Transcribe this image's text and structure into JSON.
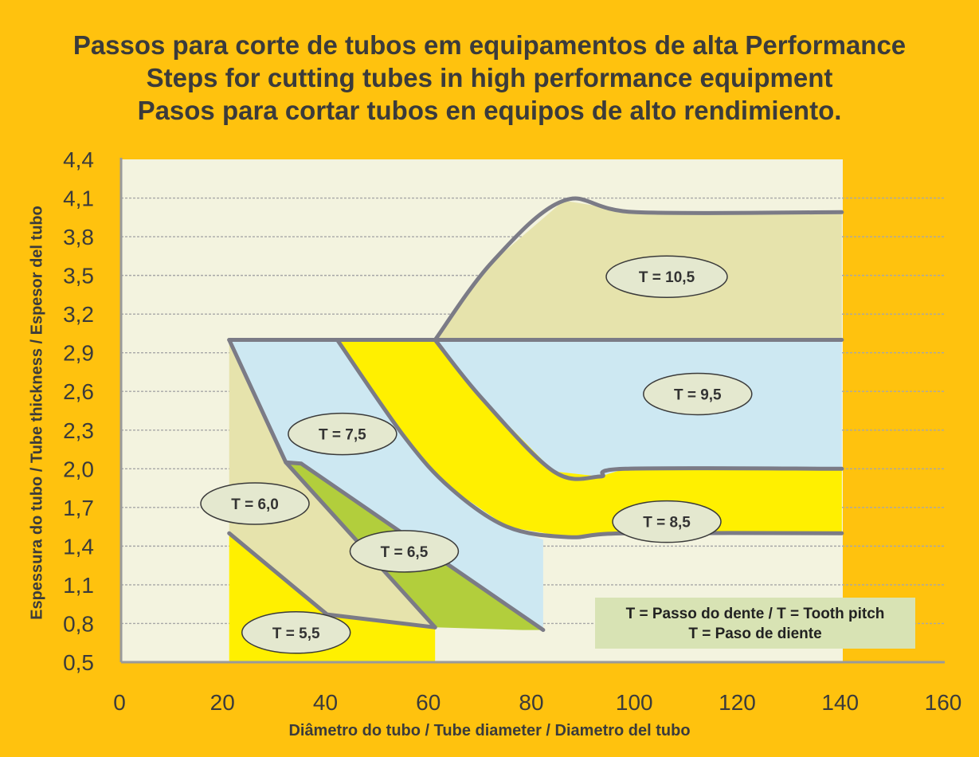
{
  "titles": [
    "Passos para corte de tubos em equipamentos de alta Performance",
    "Steps for cutting tubes in high performance equipment",
    "Pasos para cortar tubos en equipos de alto rendimiento."
  ],
  "colors": {
    "background": "#FFC20E",
    "plot_bg": "#F3F3DF",
    "line": "#7B7B86",
    "region_tan": "#E6E3AC",
    "region_blue": "#CDE8F2",
    "region_yellow": "#FFF000",
    "region_green": "#B2CE3C",
    "label_bg": "#E4E8CF"
  },
  "chart_data": {
    "type": "area",
    "xlabel": "Diâmetro do tubo / Tube diameter / Diametro del tubo",
    "ylabel": "Espessura do tubo / Tube thickness / Espesor del tubo",
    "xlim": [
      0,
      160
    ],
    "ylim": [
      0.5,
      4.4
    ],
    "x_ticks": [
      "0",
      "20",
      "40",
      "60",
      "80",
      "100",
      "120",
      "140",
      "160"
    ],
    "y_ticks": [
      "4,4",
      "4,1",
      "3,8",
      "3,5",
      "3,2",
      "2,9",
      "2,6",
      "2,3",
      "2,0",
      "1,7",
      "1,4",
      "1,1",
      "0,8",
      "0,5"
    ],
    "grid": true,
    "series": [
      {
        "name": "T = 10,5",
        "label_at": [
          106,
          3.49
        ],
        "region": [
          [
            61,
            3.0
          ],
          [
            72,
            3.6
          ],
          [
            86,
            4.08
          ],
          [
            100,
            3.99
          ],
          [
            140,
            3.99
          ],
          [
            140,
            3.0
          ]
        ]
      },
      {
        "name": "T = 9,5",
        "label_at": [
          112,
          2.58
        ],
        "region": [
          [
            61,
            3.0
          ],
          [
            140,
            3.0
          ],
          [
            140,
            2.0
          ],
          [
            98,
            2.0
          ],
          [
            93,
            1.94
          ],
          [
            84,
            1.98
          ],
          [
            70,
            2.55
          ]
        ]
      },
      {
        "name": "T = 8,5",
        "label_at": [
          106,
          1.59
        ],
        "region": [
          [
            42,
            3.0
          ],
          [
            61,
            3.0
          ],
          [
            70,
            2.55
          ],
          [
            84,
            1.98
          ],
          [
            93,
            1.94
          ],
          [
            98,
            2.0
          ],
          [
            140,
            2.0
          ],
          [
            140,
            1.5
          ],
          [
            98,
            1.5
          ],
          [
            87,
            1.47
          ],
          [
            75,
            1.55
          ],
          [
            64,
            1.85
          ],
          [
            55,
            2.25
          ]
        ]
      },
      {
        "name": "T = 7,5",
        "label_at": [
          43,
          2.27
        ],
        "region": [
          [
            21,
            3.0
          ],
          [
            42,
            3.0
          ],
          [
            55,
            2.25
          ],
          [
            64,
            1.85
          ],
          [
            75,
            1.55
          ],
          [
            82,
            1.45
          ],
          [
            82,
            0.75
          ],
          [
            35,
            2.04
          ],
          [
            32,
            2.05
          ]
        ]
      },
      {
        "name": "T = 6,5",
        "label_at": [
          55,
          1.36
        ],
        "region": [
          [
            32,
            2.05
          ],
          [
            35,
            2.04
          ],
          [
            82,
            0.75
          ],
          [
            78,
            0.75
          ],
          [
            61,
            0.77
          ]
        ]
      },
      {
        "name": "T = 6,0",
        "label_at": [
          26,
          1.73
        ],
        "region": [
          [
            21,
            3.0
          ],
          [
            32,
            2.05
          ],
          [
            61,
            0.77
          ],
          [
            40,
            0.87
          ],
          [
            21,
            1.5
          ]
        ]
      },
      {
        "name": "T = 5,5",
        "label_at": [
          34,
          0.73
        ],
        "region": [
          [
            21,
            1.5
          ],
          [
            40,
            0.87
          ],
          [
            61,
            0.77
          ],
          [
            61,
            0.5
          ],
          [
            21,
            0.5
          ]
        ]
      }
    ],
    "boundaries": [
      [
        [
          61,
          3.0
        ],
        [
          72,
          3.6
        ],
        [
          86,
          4.08
        ],
        [
          100,
          3.99
        ],
        [
          140,
          3.99
        ]
      ],
      [
        [
          21,
          3.0
        ],
        [
          140,
          3.0
        ]
      ],
      [
        [
          61,
          3.0
        ],
        [
          70,
          2.55
        ],
        [
          84,
          1.98
        ],
        [
          93,
          1.94
        ],
        [
          98,
          2.0
        ],
        [
          140,
          2.0
        ]
      ],
      [
        [
          42,
          3.0
        ],
        [
          55,
          2.25
        ],
        [
          64,
          1.85
        ],
        [
          75,
          1.55
        ],
        [
          87,
          1.47
        ],
        [
          98,
          1.5
        ],
        [
          140,
          1.5
        ]
      ],
      [
        [
          21,
          3.0
        ],
        [
          32,
          2.05
        ],
        [
          61,
          0.77
        ]
      ],
      [
        [
          32,
          2.05
        ],
        [
          35,
          2.04
        ],
        [
          82,
          0.75
        ]
      ],
      [
        [
          21,
          1.5
        ],
        [
          40,
          0.87
        ],
        [
          61,
          0.77
        ]
      ]
    ]
  },
  "legend": {
    "line1": "T = Passo do dente / T = Tooth pitch",
    "line2": "T = Paso de diente"
  }
}
